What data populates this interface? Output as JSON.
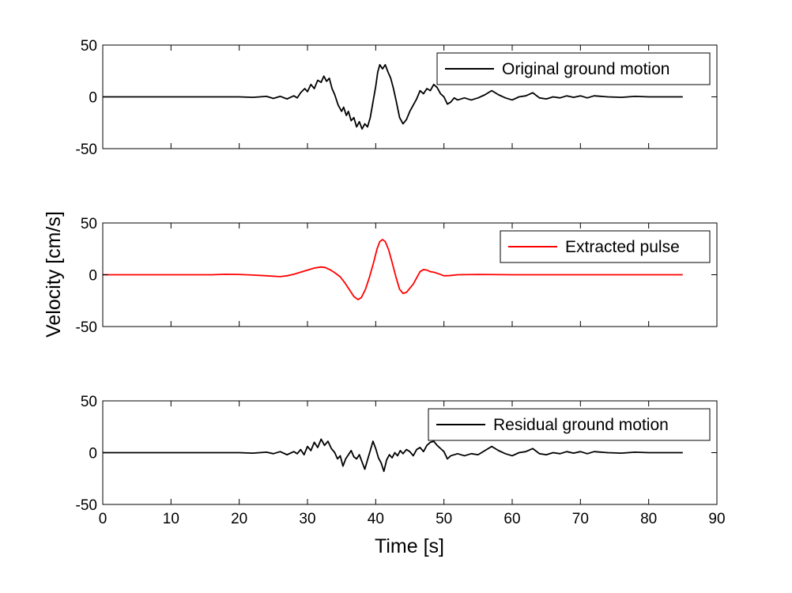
{
  "figure": {
    "ylabel": "Velocity [cm/s]",
    "xlabel": "Time [s]"
  },
  "chart_data": [
    {
      "type": "line",
      "xlim": [
        0,
        90
      ],
      "ylim": [
        -50,
        50
      ],
      "xticks": [
        0,
        10,
        20,
        30,
        40,
        50,
        60,
        70,
        80,
        90
      ],
      "yticks": [
        -50,
        0,
        50
      ],
      "show_xticklabels": false,
      "grid": false,
      "legend_position": "top-right",
      "series": [
        {
          "name": "Original ground motion",
          "color": "#000000",
          "points": [
            [
              0,
              0
            ],
            [
              12,
              0
            ],
            [
              16,
              0
            ],
            [
              20,
              0
            ],
            [
              22,
              -0.5
            ],
            [
              24,
              0.5
            ],
            [
              25,
              -1.5
            ],
            [
              26,
              0.5
            ],
            [
              27,
              -2
            ],
            [
              28,
              1
            ],
            [
              28.5,
              -1
            ],
            [
              29,
              4
            ],
            [
              29.6,
              8
            ],
            [
              30,
              5
            ],
            [
              30.5,
              12
            ],
            [
              31,
              8
            ],
            [
              31.5,
              16
            ],
            [
              32,
              14
            ],
            [
              32.4,
              20
            ],
            [
              32.8,
              15
            ],
            [
              33.2,
              18
            ],
            [
              33.6,
              8
            ],
            [
              34,
              2
            ],
            [
              34.5,
              -8
            ],
            [
              35,
              -14
            ],
            [
              35.3,
              -10
            ],
            [
              35.7,
              -18
            ],
            [
              36,
              -14
            ],
            [
              36.4,
              -23
            ],
            [
              36.8,
              -20
            ],
            [
              37.2,
              -29
            ],
            [
              37.6,
              -24
            ],
            [
              38,
              -31
            ],
            [
              38.4,
              -26
            ],
            [
              38.8,
              -29
            ],
            [
              39.2,
              -20
            ],
            [
              39.6,
              -5
            ],
            [
              40,
              10
            ],
            [
              40.3,
              24
            ],
            [
              40.6,
              31
            ],
            [
              41,
              27
            ],
            [
              41.4,
              31
            ],
            [
              41.8,
              24
            ],
            [
              42.2,
              18
            ],
            [
              42.6,
              8
            ],
            [
              43,
              -4
            ],
            [
              43.5,
              -20
            ],
            [
              44,
              -26
            ],
            [
              44.5,
              -22
            ],
            [
              45,
              -14
            ],
            [
              45.5,
              -8
            ],
            [
              46,
              -2
            ],
            [
              46.5,
              6
            ],
            [
              47,
              3
            ],
            [
              47.5,
              8
            ],
            [
              48,
              6
            ],
            [
              48.5,
              12
            ],
            [
              49,
              9
            ],
            [
              49.5,
              3
            ],
            [
              50,
              0
            ],
            [
              50.5,
              -7
            ],
            [
              51,
              -5
            ],
            [
              51.5,
              -1
            ],
            [
              52,
              -3
            ],
            [
              53,
              -1
            ],
            [
              54,
              -3
            ],
            [
              55,
              -1
            ],
            [
              56,
              2
            ],
            [
              57,
              6
            ],
            [
              58,
              2
            ],
            [
              59,
              -1
            ],
            [
              60,
              -3
            ],
            [
              61,
              0
            ],
            [
              62,
              1
            ],
            [
              63,
              4
            ],
            [
              64,
              -1
            ],
            [
              65,
              -2
            ],
            [
              66,
              0
            ],
            [
              67,
              -1
            ],
            [
              68,
              1
            ],
            [
              69,
              -0.5
            ],
            [
              70,
              1
            ],
            [
              71,
              -1
            ],
            [
              72,
              1
            ],
            [
              74,
              0
            ],
            [
              76,
              -0.5
            ],
            [
              78,
              0.5
            ],
            [
              80,
              0
            ],
            [
              82,
              0
            ],
            [
              85,
              0
            ]
          ]
        }
      ]
    },
    {
      "type": "line",
      "xlim": [
        0,
        90
      ],
      "ylim": [
        -50,
        50
      ],
      "xticks": [
        0,
        10,
        20,
        30,
        40,
        50,
        60,
        70,
        80,
        90
      ],
      "yticks": [
        -50,
        0,
        50
      ],
      "show_xticklabels": false,
      "grid": false,
      "legend_position": "top-right",
      "series": [
        {
          "name": "Extracted pulse",
          "color": "#ff0000",
          "points": [
            [
              0,
              0
            ],
            [
              16,
              0
            ],
            [
              18,
              0.5
            ],
            [
              20,
              0.3
            ],
            [
              22,
              -0.3
            ],
            [
              24,
              -1
            ],
            [
              26,
              -1.8
            ],
            [
              27,
              -1
            ],
            [
              28,
              0.5
            ],
            [
              29,
              2.5
            ],
            [
              30,
              4.5
            ],
            [
              31,
              6.5
            ],
            [
              32,
              7.5
            ],
            [
              32.6,
              7
            ],
            [
              33.4,
              4.5
            ],
            [
              34,
              2
            ],
            [
              34.8,
              -2
            ],
            [
              35.5,
              -8
            ],
            [
              36.2,
              -15
            ],
            [
              36.8,
              -21
            ],
            [
              37.4,
              -24
            ],
            [
              37.9,
              -22
            ],
            [
              38.5,
              -14
            ],
            [
              39.1,
              -2
            ],
            [
              39.7,
              12
            ],
            [
              40.2,
              25
            ],
            [
              40.6,
              32
            ],
            [
              41,
              34
            ],
            [
              41.4,
              32
            ],
            [
              41.9,
              24
            ],
            [
              42.4,
              12
            ],
            [
              43,
              -3
            ],
            [
              43.5,
              -14
            ],
            [
              44,
              -18
            ],
            [
              44.5,
              -17
            ],
            [
              45,
              -13
            ],
            [
              45.5,
              -9
            ],
            [
              46,
              -3
            ],
            [
              46.5,
              3
            ],
            [
              47,
              5
            ],
            [
              47.5,
              4.5
            ],
            [
              48,
              3
            ],
            [
              48.5,
              2.5
            ],
            [
              49.2,
              1
            ],
            [
              50,
              -1
            ],
            [
              50.8,
              -0.8
            ],
            [
              52,
              0
            ],
            [
              55,
              0.3
            ],
            [
              60,
              0
            ],
            [
              65,
              0
            ],
            [
              70,
              0
            ],
            [
              75,
              0
            ],
            [
              80,
              0
            ],
            [
              85,
              0
            ]
          ]
        }
      ]
    },
    {
      "type": "line",
      "xlim": [
        0,
        90
      ],
      "ylim": [
        -50,
        50
      ],
      "xticks": [
        0,
        10,
        20,
        30,
        40,
        50,
        60,
        70,
        80,
        90
      ],
      "yticks": [
        -50,
        0,
        50
      ],
      "show_xticklabels": true,
      "grid": false,
      "legend_position": "top-right",
      "series": [
        {
          "name": "Residual ground motion",
          "color": "#000000",
          "points": [
            [
              0,
              0
            ],
            [
              12,
              0
            ],
            [
              16,
              0
            ],
            [
              20,
              0
            ],
            [
              22,
              -0.5
            ],
            [
              24,
              0.5
            ],
            [
              25,
              -1
            ],
            [
              26,
              1
            ],
            [
              27,
              -2
            ],
            [
              28,
              1
            ],
            [
              28.5,
              -1
            ],
            [
              29,
              3
            ],
            [
              29.5,
              -2
            ],
            [
              30,
              6
            ],
            [
              30.5,
              2
            ],
            [
              31,
              10
            ],
            [
              31.5,
              5
            ],
            [
              32,
              13
            ],
            [
              32.5,
              7
            ],
            [
              33,
              11
            ],
            [
              33.5,
              4
            ],
            [
              34,
              0
            ],
            [
              34.4,
              -6
            ],
            [
              34.8,
              -3
            ],
            [
              35.2,
              -13
            ],
            [
              35.6,
              -6
            ],
            [
              36,
              -2
            ],
            [
              36.4,
              2
            ],
            [
              36.8,
              -4
            ],
            [
              37.2,
              -6
            ],
            [
              37.6,
              -2
            ],
            [
              38,
              -9
            ],
            [
              38.4,
              -16
            ],
            [
              38.8,
              -7
            ],
            [
              39.2,
              2
            ],
            [
              39.6,
              11
            ],
            [
              40,
              4
            ],
            [
              40.4,
              -5
            ],
            [
              40.8,
              -10
            ],
            [
              41.2,
              -18
            ],
            [
              41.6,
              -7
            ],
            [
              42,
              -2
            ],
            [
              42.4,
              -5
            ],
            [
              42.8,
              0
            ],
            [
              43.2,
              -3
            ],
            [
              43.6,
              2
            ],
            [
              44,
              -1
            ],
            [
              44.5,
              3
            ],
            [
              45,
              1
            ],
            [
              45.5,
              -3
            ],
            [
              46,
              3
            ],
            [
              46.5,
              5
            ],
            [
              47,
              1
            ],
            [
              47.5,
              7
            ],
            [
              48,
              10
            ],
            [
              48.5,
              11
            ],
            [
              49,
              7
            ],
            [
              49.5,
              4
            ],
            [
              50,
              1
            ],
            [
              50.5,
              -6
            ],
            [
              51,
              -3
            ],
            [
              52,
              -1
            ],
            [
              53,
              -3
            ],
            [
              54,
              -1
            ],
            [
              55,
              -2
            ],
            [
              56,
              2
            ],
            [
              57,
              6
            ],
            [
              58,
              2
            ],
            [
              59,
              -1
            ],
            [
              60,
              -3
            ],
            [
              61,
              0
            ],
            [
              62,
              1
            ],
            [
              63,
              4
            ],
            [
              64,
              -1
            ],
            [
              65,
              -2
            ],
            [
              66,
              0
            ],
            [
              67,
              -1
            ],
            [
              68,
              1
            ],
            [
              69,
              -0.5
            ],
            [
              70,
              1
            ],
            [
              71,
              -1
            ],
            [
              72,
              1
            ],
            [
              74,
              0
            ],
            [
              76,
              -0.5
            ],
            [
              78,
              0.5
            ],
            [
              80,
              0
            ],
            [
              82,
              0
            ],
            [
              85,
              0
            ]
          ]
        }
      ]
    }
  ]
}
